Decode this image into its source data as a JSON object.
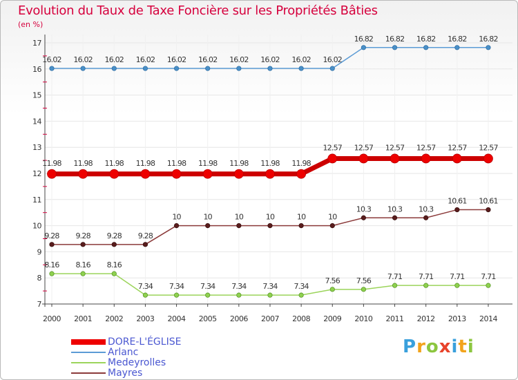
{
  "chart_data": {
    "type": "line",
    "title": "Evolution du Taux de Taxe Foncière sur les Propriétés Bâties",
    "ylabel": "(en %)",
    "xlabel": "",
    "ylim": [
      7,
      17
    ],
    "yticks": [
      "7",
      "8",
      "9",
      "10",
      "11",
      "12",
      "13",
      "14",
      "15",
      "16",
      "17"
    ],
    "x": [
      "2000",
      "2001",
      "2002",
      "2003",
      "2004",
      "2005",
      "2006",
      "2007",
      "2008",
      "2009",
      "2010",
      "2011",
      "2012",
      "2013",
      "2014"
    ],
    "series": [
      {
        "name": "DORE-L'ÉGLISE",
        "color": "#ee0000",
        "values": [
          11.98,
          11.98,
          11.98,
          11.98,
          11.98,
          11.98,
          11.98,
          11.98,
          11.98,
          12.57,
          12.57,
          12.57,
          12.57,
          12.57,
          12.57
        ],
        "labels": [
          "11.98",
          "11.98",
          "11.98",
          "11.98",
          "11.98",
          "11.98",
          "11.98",
          "11.98",
          "11.98",
          "12.57",
          "12.57",
          "12.57",
          "12.57",
          "12.57",
          "12.57"
        ]
      },
      {
        "name": "Arlanc",
        "color": "#5b9bd5",
        "values": [
          16.02,
          16.02,
          16.02,
          16.02,
          16.02,
          16.02,
          16.02,
          16.02,
          16.02,
          16.02,
          16.82,
          16.82,
          16.82,
          16.82,
          16.82
        ],
        "labels": [
          "16.02",
          "16.02",
          "16.02",
          "16.02",
          "16.02",
          "16.02",
          "16.02",
          "16.02",
          "16.02",
          "16.02",
          "16.82",
          "16.82",
          "16.82",
          "16.82",
          "16.82"
        ]
      },
      {
        "name": "Medeyrolles",
        "color": "#9bd45a",
        "values": [
          8.16,
          8.16,
          8.16,
          7.34,
          7.34,
          7.34,
          7.34,
          7.34,
          7.34,
          7.56,
          7.56,
          7.71,
          7.71,
          7.71,
          7.71
        ],
        "labels": [
          "8.16",
          "8.16",
          "8.16",
          "7.34",
          "7.34",
          "7.34",
          "7.34",
          "7.34",
          "7.34",
          "7.56",
          "7.56",
          "7.71",
          "7.71",
          "7.71",
          "7.71"
        ]
      },
      {
        "name": "Mayres",
        "color": "#8b3a3a",
        "values": [
          9.28,
          9.28,
          9.28,
          9.28,
          10,
          10,
          10,
          10,
          10,
          10,
          10.3,
          10.3,
          10.3,
          10.61,
          10.61
        ],
        "labels": [
          "9.28",
          "9.28",
          "9.28",
          "9.28",
          "10",
          "10",
          "10",
          "10",
          "10",
          "10",
          "10.3",
          "10.3",
          "10.3",
          "10.61",
          "10.61"
        ]
      }
    ],
    "legend_position": "bottom-left"
  },
  "logo": {
    "text": "Proxiti"
  }
}
